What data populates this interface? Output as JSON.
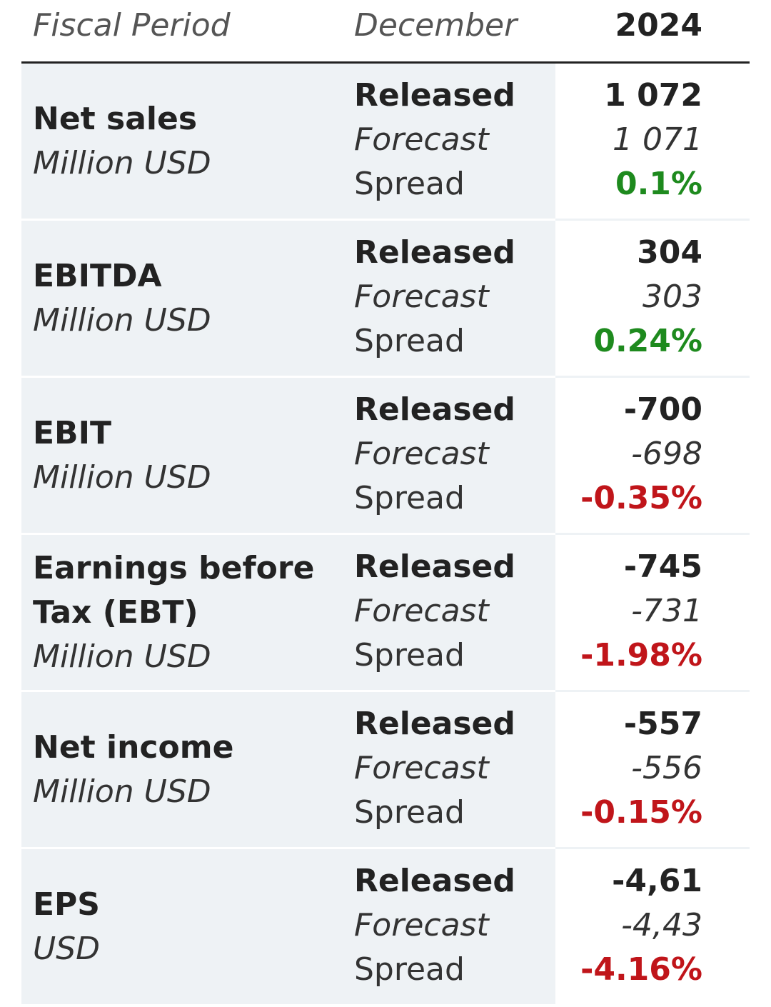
{
  "header": {
    "label": "Fiscal Period",
    "period": "December",
    "year": "2024"
  },
  "row_labels": {
    "released": "Released",
    "forecast": "Forecast",
    "spread": "Spread"
  },
  "colors": {
    "positive": "#1e8a1e",
    "negative": "#c0151a",
    "row_background": "#eef2f5"
  },
  "rows": [
    {
      "name": "Net sales",
      "unit": "Million USD",
      "released": "1 072",
      "forecast": "1 071",
      "spread": "0.1%",
      "trend": "positive"
    },
    {
      "name": "EBITDA",
      "unit": "Million USD",
      "released": "304",
      "forecast": "303",
      "spread": "0.24%",
      "trend": "positive"
    },
    {
      "name": "EBIT",
      "unit": "Million USD",
      "released": "-700",
      "forecast": "-698",
      "spread": "-0.35%",
      "trend": "negative"
    },
    {
      "name": "Earnings before Tax (EBT)",
      "unit": "Million USD",
      "released": "-745",
      "forecast": "-731",
      "spread": "-1.98%",
      "trend": "negative"
    },
    {
      "name": "Net income",
      "unit": "Million USD",
      "released": "-557",
      "forecast": "-556",
      "spread": "-0.15%",
      "trend": "negative"
    },
    {
      "name": "EPS",
      "unit": "USD",
      "released": "-4,61",
      "forecast": "-4,43",
      "spread": "-4.16%",
      "trend": "negative"
    }
  ]
}
